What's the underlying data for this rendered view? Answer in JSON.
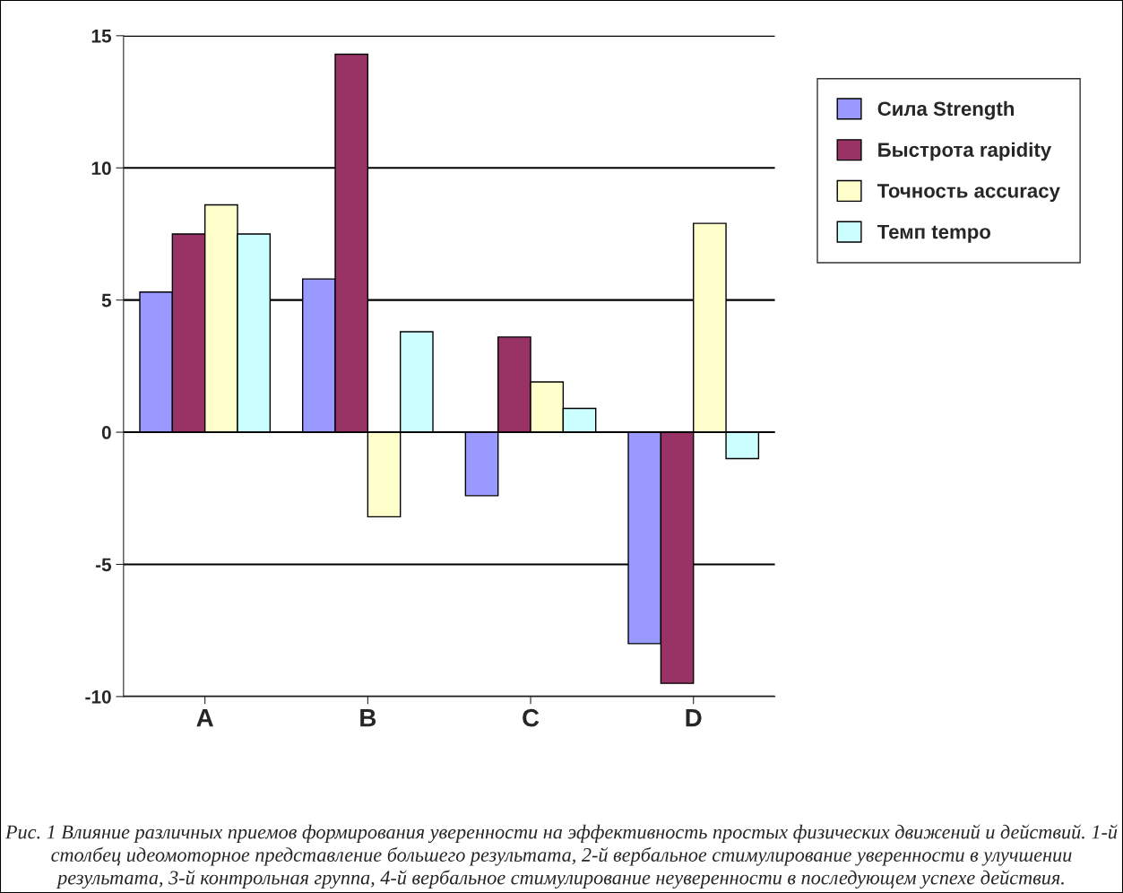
{
  "chart_data": {
    "type": "bar",
    "categories": [
      "A",
      "B",
      "C",
      "D"
    ],
    "series": [
      {
        "name": "Сила Strength",
        "color": "#9999ff",
        "values": [
          5.3,
          5.8,
          -2.4,
          -8.0
        ]
      },
      {
        "name": "Быстрота rapidity",
        "color": "#993366",
        "values": [
          7.5,
          14.3,
          3.6,
          -9.5
        ]
      },
      {
        "name": "Точность accuracy",
        "color": "#ffffcc",
        "values": [
          8.6,
          -3.2,
          1.9,
          7.9
        ]
      },
      {
        "name": "Темп tempo",
        "color": "#ccffff",
        "values": [
          7.5,
          3.8,
          0.9,
          -1.0
        ]
      }
    ],
    "ylim": [
      -10,
      15
    ],
    "yticks": [
      -10,
      -5,
      0,
      5,
      10,
      15
    ],
    "grid": "y",
    "legend": "right",
    "annotations": [
      "Рис. 1 Влияние различных приемов формирования уверенности на эффективность простых физических движений и действий. 1-й столбец идеомоторное представление большего результата, 2-й вербальное стимулирование уверенности в улучшении результата, 3-й контрольная группа, 4-й вербальное стимулирование неуверенности в последующем успехе действия."
    ]
  }
}
